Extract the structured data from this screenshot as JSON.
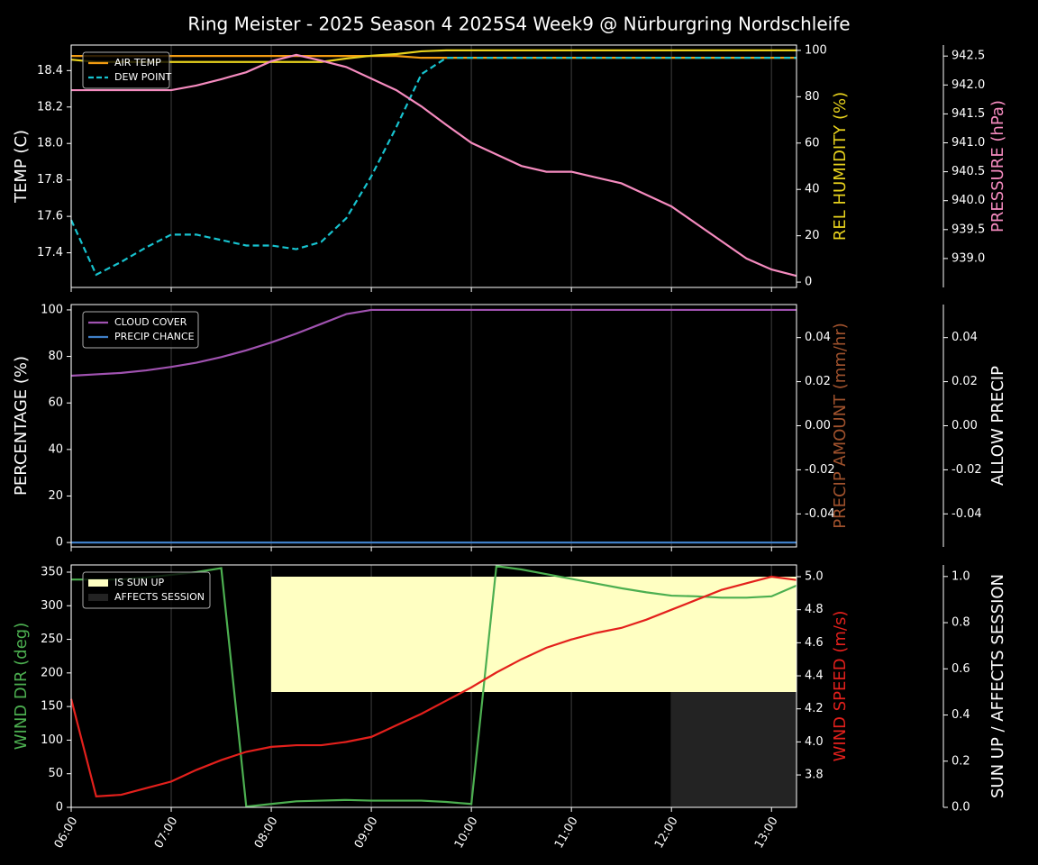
{
  "title": "Ring Meister - 2025 Season 4 2025S4 Week9 @ Nürburgring Nordschleife",
  "chart_data": [
    {
      "type": "line",
      "x": [
        6,
        6.25,
        6.5,
        6.75,
        7,
        7.25,
        7.5,
        7.75,
        8,
        8.25,
        8.5,
        8.75,
        9,
        9.25,
        9.5,
        9.75,
        10,
        10.25,
        10.5,
        10.75,
        11,
        11.25,
        11.5,
        11.75,
        12,
        12.25,
        12.5,
        12.75,
        13,
        13.25
      ],
      "xlim": [
        6,
        13.25
      ],
      "ylabel": "TEMP (C)",
      "ylabel_color": "#ffffff",
      "ylim": [
        17.21,
        18.54
      ],
      "yticks": [
        17.4,
        17.6,
        17.8,
        {
          "value": 18,
          "label": "18.0"
        },
        18.2,
        18.4
      ],
      "y2label": "REL HUMIDITY (%)",
      "y2label_color": "#e8d21d",
      "y2lim": [
        -2.3,
        102.3
      ],
      "y2ticks": [
        0,
        20,
        40,
        60,
        80,
        100
      ],
      "y3label": "PRESSURE (hPa)",
      "y3label_color": "#f58bbf",
      "y3lim": [
        938.5,
        942.69
      ],
      "y3ticks": [
        {
          "value": 939,
          "label": "939.0"
        },
        939.5,
        {
          "value": 940,
          "label": "940.0"
        },
        940.5,
        {
          "value": 941,
          "label": "941.0"
        },
        941.5,
        {
          "value": 942,
          "label": "942.0"
        },
        942.5
      ],
      "series": [
        {
          "name": "AIR TEMP",
          "color": "#f39c12",
          "axis": "y",
          "values": [
            18.48,
            18.48,
            18.48,
            18.48,
            18.48,
            18.48,
            18.48,
            18.48,
            18.48,
            18.48,
            18.48,
            18.48,
            18.48,
            18.48,
            18.47,
            18.47,
            18.47,
            18.47,
            18.47,
            18.47,
            18.47,
            18.47,
            18.47,
            18.47,
            18.47,
            18.47,
            18.47,
            18.47,
            18.47,
            18.47
          ]
        },
        {
          "name": "DEW POINT",
          "color": "#17c3cf",
          "axis": "y",
          "linestyle": "dashed",
          "values": [
            17.58,
            17.28,
            17.35,
            17.43,
            17.5,
            17.5,
            17.47,
            17.44,
            17.44,
            17.42,
            17.46,
            17.59,
            17.82,
            18.09,
            18.38,
            18.47,
            18.47,
            18.47,
            18.47,
            18.47,
            18.47,
            18.47,
            18.47,
            18.47,
            18.47,
            18.47,
            18.47,
            18.47,
            18.47,
            18.47
          ]
        },
        {
          "color": "#e8d21d",
          "axis": "y2",
          "values": [
            96,
            95,
            95,
            95,
            95,
            95,
            95,
            95,
            95,
            95,
            95,
            96.5,
            97.7,
            98.4,
            99.6,
            100,
            100,
            100,
            100,
            100,
            100,
            100,
            100,
            100,
            100,
            100,
            100,
            100,
            100,
            100
          ]
        },
        {
          "color": "#f58bbf",
          "axis": "y3",
          "values": [
            941.91,
            941.91,
            941.91,
            941.91,
            941.91,
            941.99,
            942.1,
            942.22,
            942.41,
            942.52,
            942.42,
            942.31,
            942.11,
            941.91,
            941.63,
            941.31,
            941.0,
            940.8,
            940.6,
            940.5,
            940.5,
            940.4,
            940.3,
            940.1,
            939.9,
            939.6,
            939.3,
            939.0,
            938.81,
            938.7
          ]
        }
      ]
    },
    {
      "type": "line",
      "x": [
        6,
        6.25,
        6.5,
        6.75,
        7,
        7.25,
        7.5,
        7.75,
        8,
        8.25,
        8.5,
        8.75,
        9,
        9.25,
        9.5,
        9.75,
        10,
        10.25,
        10.5,
        10.75,
        11,
        11.25,
        11.5,
        11.75,
        12,
        12.25,
        12.5,
        12.75,
        13,
        13.25
      ],
      "xlim": [
        6,
        13.25
      ],
      "ylabel": "PERCENTAGE (%)",
      "ylabel_color": "#ffffff",
      "ylim": [
        -1.9,
        102.3
      ],
      "yticks": [
        0,
        20,
        40,
        60,
        80,
        100
      ],
      "y2label": "PRECIP AMOUNT (mm/hr)",
      "y2label_color": "#a0522d",
      "y2lim": [
        -0.055,
        0.055
      ],
      "y2ticks": [
        -0.04,
        -0.02,
        {
          "value": 0,
          "label": "0.00"
        },
        0.02,
        0.04
      ],
      "y3label": "ALLOW PRECIP",
      "y3label_color": "#ffffff",
      "y3lim": [
        -0.055,
        0.055
      ],
      "y3ticks": [
        -0.04,
        -0.02,
        {
          "value": 0,
          "label": "0.00"
        },
        0.02,
        0.04
      ],
      "series": [
        {
          "name": "CLOUD COVER",
          "color": "#a052b0",
          "axis": "y",
          "values": [
            71.7,
            72.3,
            72.9,
            74,
            75.5,
            77.3,
            79.7,
            82.6,
            86,
            89.8,
            94,
            98.2,
            100,
            100,
            100,
            100,
            100,
            100,
            100,
            100,
            100,
            100,
            100,
            100,
            100,
            100,
            100,
            100,
            100,
            100
          ]
        },
        {
          "name": "PRECIP CHANCE",
          "color": "#3f7fc8",
          "axis": "y",
          "values": [
            0,
            0,
            0,
            0,
            0,
            0,
            0,
            0,
            0,
            0,
            0,
            0,
            0,
            0,
            0,
            0,
            0,
            0,
            0,
            0,
            0,
            0,
            0,
            0,
            0,
            0,
            0,
            0,
            0,
            0
          ]
        }
      ]
    },
    {
      "type": "line",
      "x": [
        6,
        6.25,
        6.5,
        6.75,
        7,
        7.25,
        7.5,
        7.75,
        8,
        8.25,
        8.5,
        8.75,
        9,
        9.25,
        9.5,
        9.75,
        10,
        10.25,
        10.5,
        10.75,
        11,
        11.25,
        11.5,
        11.75,
        12,
        12.25,
        12.5,
        12.75,
        13,
        13.25
      ],
      "xlim": [
        6,
        13.25
      ],
      "xticks": [
        {
          "value": 6,
          "label": "06:00"
        },
        {
          "value": 7,
          "label": "07:00"
        },
        {
          "value": 8,
          "label": "08:00"
        },
        {
          "value": 9,
          "label": "09:00"
        },
        {
          "value": 10,
          "label": "10:00"
        },
        {
          "value": 11,
          "label": "11:00"
        },
        {
          "value": 12,
          "label": "12:00"
        },
        {
          "value": 13,
          "label": "13:00"
        }
      ],
      "ylabel": "WIND DIR (deg)",
      "ylabel_color": "#4caf50",
      "ylim": [
        0,
        360.7
      ],
      "yticks": [
        0,
        50,
        100,
        150,
        200,
        250,
        300,
        350
      ],
      "y2label": "WIND SPEED (m/s)",
      "y2label_color": "#e3201c",
      "y2lim": [
        3.604,
        5.071
      ],
      "y2ticks": [
        3.8,
        {
          "value": 4,
          "label": "4.0"
        },
        4.2,
        4.4,
        4.6,
        4.8,
        {
          "value": 5,
          "label": "5.0"
        }
      ],
      "y3label": "SUN UP / AFFECTS SESSION",
      "y3label_color": "#ffffff",
      "y3lim": [
        0,
        1.05
      ],
      "y3ticks": [
        {
          "value": 0,
          "label": "0.0"
        },
        0.2,
        0.4,
        0.6,
        0.8,
        {
          "value": 1,
          "label": "1.0"
        }
      ],
      "series": [
        {
          "name": "IS SUN UP",
          "color": "#ffffc2",
          "axis": "y3",
          "kind": "fill",
          "values": [
            0,
            0,
            0,
            0,
            0,
            0,
            0,
            0,
            1,
            1,
            1,
            1,
            1,
            1,
            1,
            1,
            1,
            1,
            1,
            1,
            1,
            1,
            1,
            1,
            1,
            1,
            1,
            1,
            1,
            1
          ]
        },
        {
          "name": "AFFECTS SESSION",
          "color": "#232323",
          "axis": "y3",
          "kind": "fill",
          "values": [
            0,
            0,
            0,
            0,
            0,
            0,
            0,
            0,
            0,
            0,
            0,
            0,
            0,
            0,
            0,
            0,
            0,
            0,
            0,
            0,
            0,
            0,
            0,
            0,
            1,
            1,
            1,
            1,
            1,
            1
          ]
        },
        {
          "color": "#4caf50",
          "axis": "y",
          "values": [
            339,
            339,
            339,
            342,
            346,
            350,
            356,
            1,
            5,
            9,
            10,
            11,
            10,
            10,
            10,
            8,
            5,
            359,
            354,
            347,
            340,
            333,
            326,
            320,
            315,
            314,
            312,
            312,
            314,
            330
          ]
        },
        {
          "color": "#e3201c",
          "axis": "y2",
          "values": [
            4.26,
            3.67,
            3.68,
            3.72,
            3.76,
            3.83,
            3.89,
            3.94,
            3.97,
            3.98,
            3.98,
            4.0,
            4.03,
            4.1,
            4.17,
            4.25,
            4.33,
            4.42,
            4.5,
            4.57,
            4.62,
            4.66,
            4.69,
            4.74,
            4.8,
            4.86,
            4.92,
            4.96,
            5.0,
            4.98
          ]
        }
      ]
    }
  ]
}
